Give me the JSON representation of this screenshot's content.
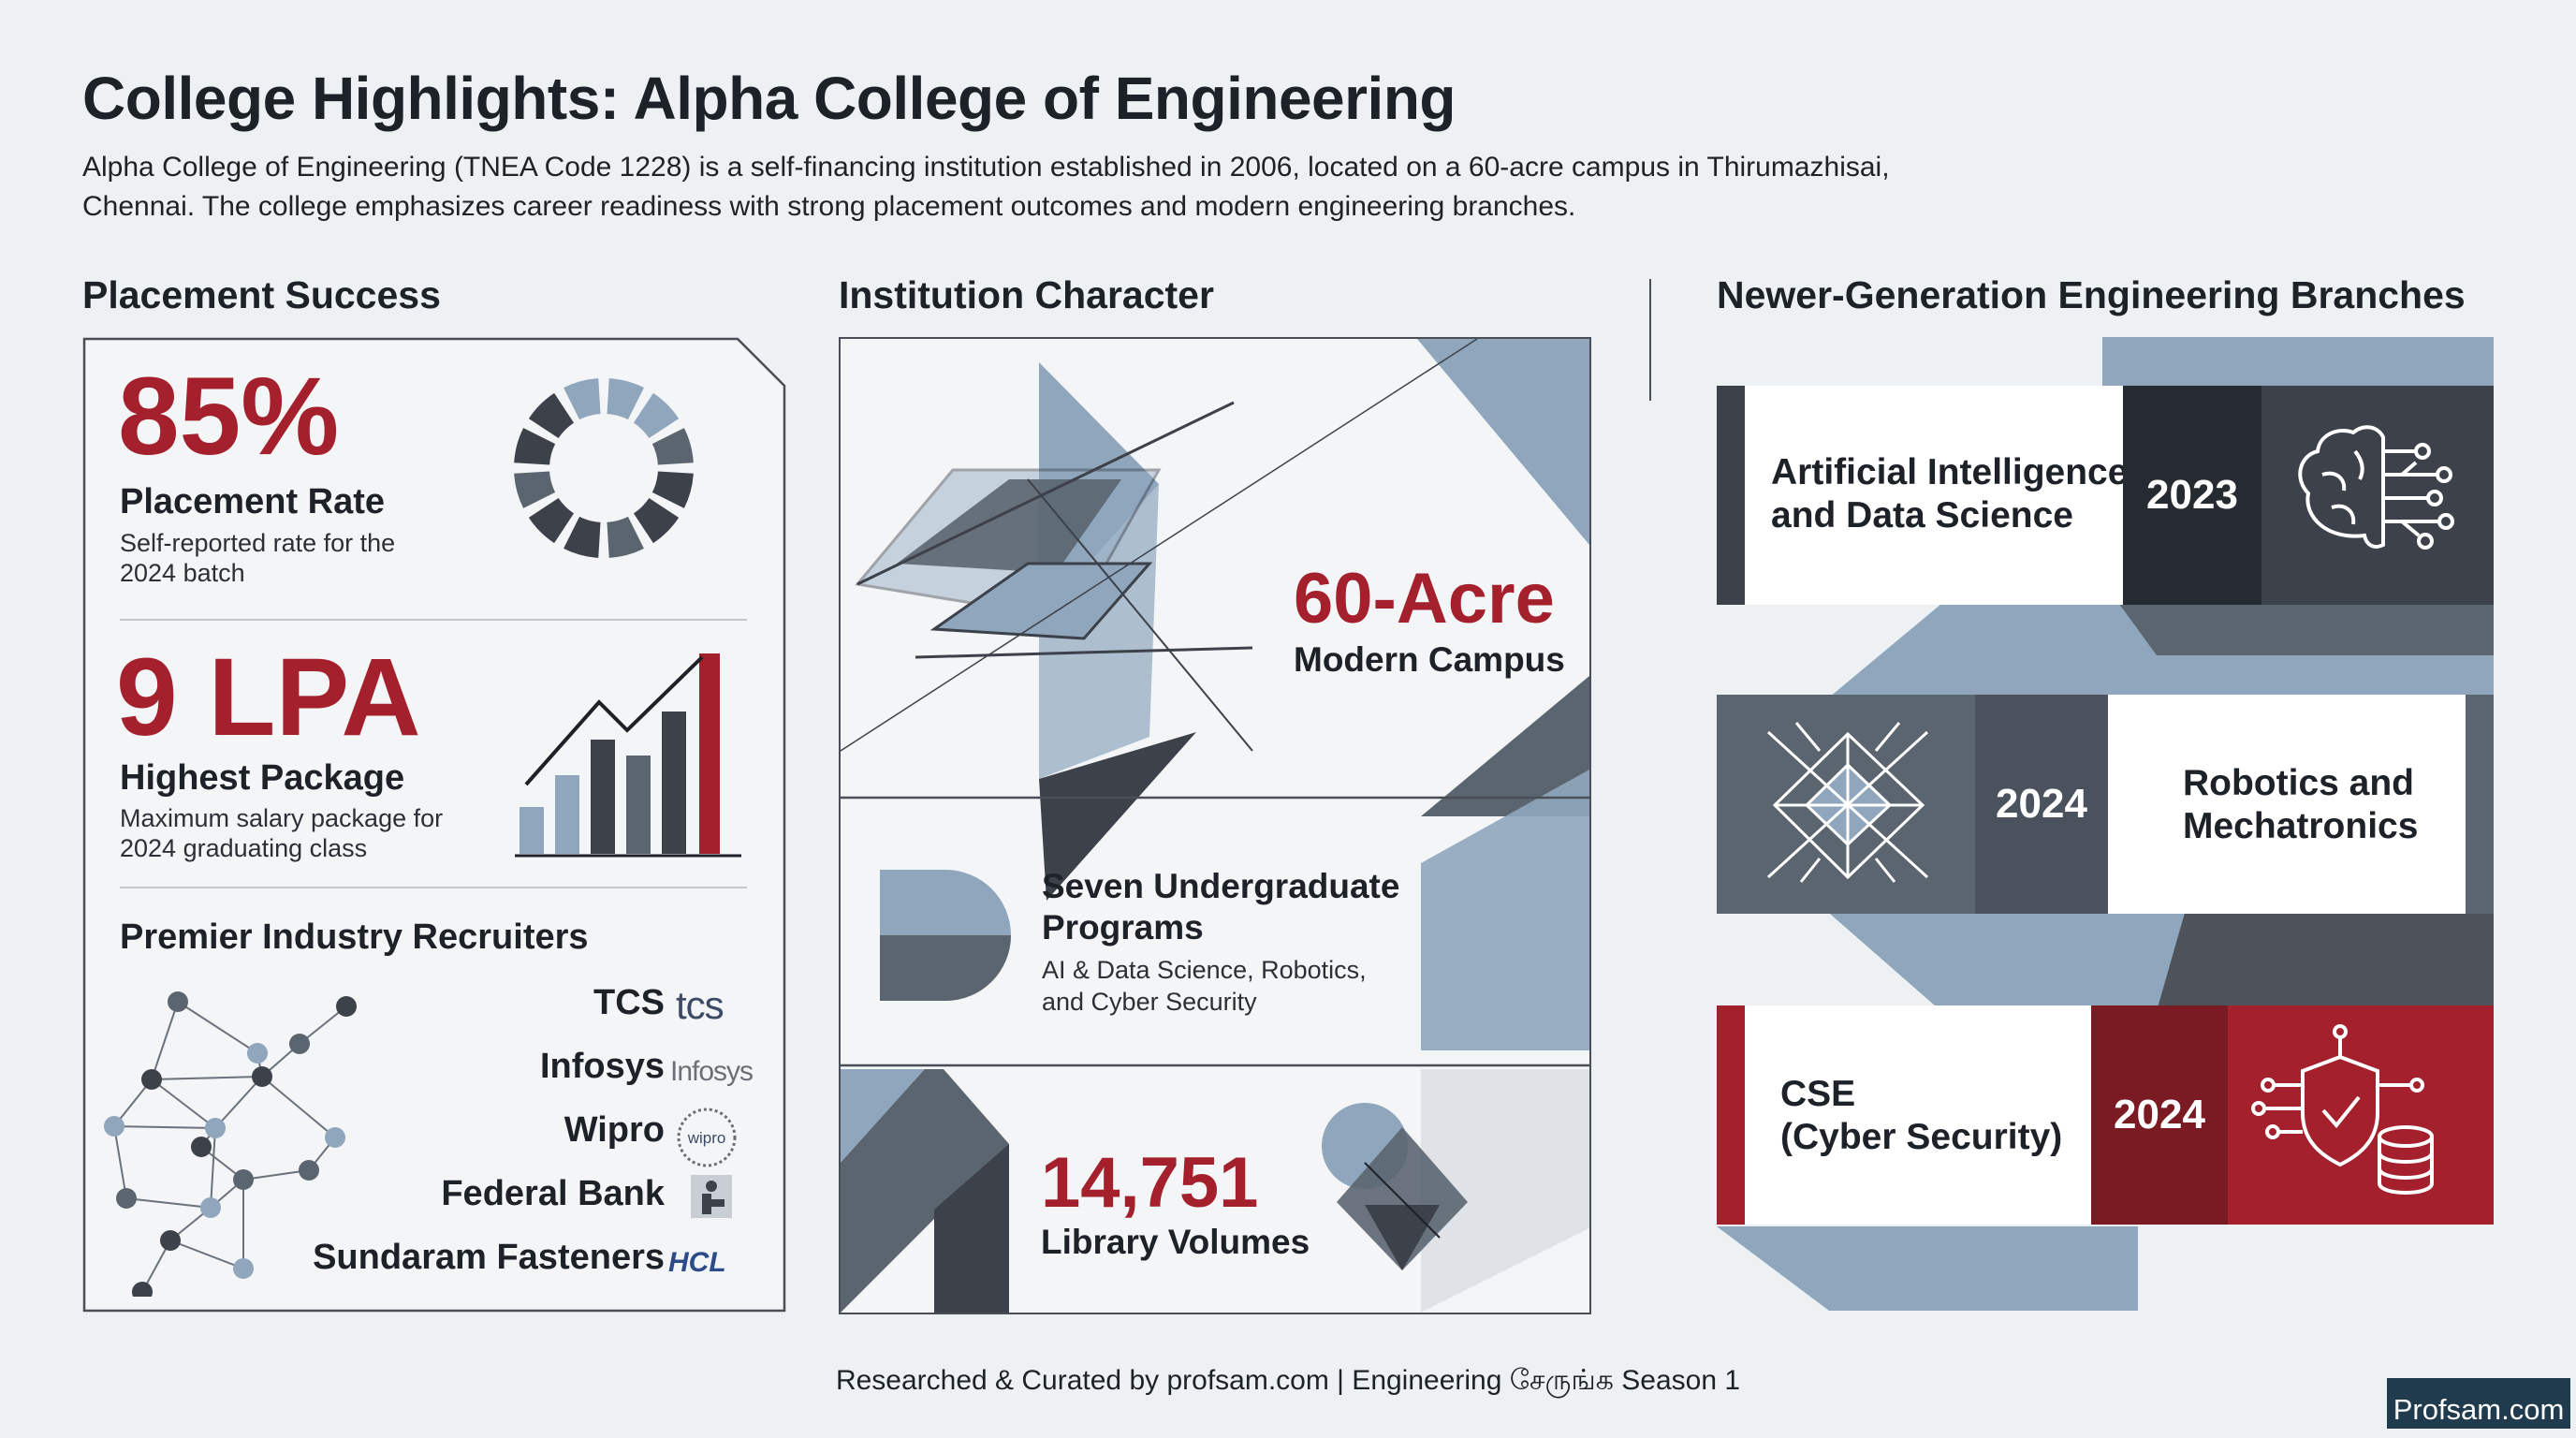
{
  "header": {
    "title": "College Highlights: Alpha College of Engineering",
    "intro_line1": "Alpha College of Engineering (TNEA Code 1228) is a self-financing institution established in 2006, located on a 60-acre campus in Thirumazhisai,",
    "intro_line2": "Chennai. The college emphasizes career readiness with strong placement outcomes and modern engineering branches."
  },
  "placement": {
    "heading": "Placement Success",
    "rate_value": "85%",
    "rate_label": "Placement Rate",
    "rate_desc_1": "Self-reported rate for the",
    "rate_desc_2": "2024 batch",
    "package_value": "9 LPA",
    "package_label": "Highest Package",
    "package_desc_1": "Maximum salary package for",
    "package_desc_2": "2024 graduating class",
    "recruiters_heading": "Premier Industry Recruiters",
    "recruiters": [
      "TCS",
      "Infosys",
      "Wipro",
      "Federal Bank",
      "Sundaram Fasteners"
    ],
    "logos": [
      "tcs",
      "Infosys",
      "wipro",
      "",
      "HCL"
    ]
  },
  "institution": {
    "heading": "Institution Character",
    "campus_value": "60-Acre",
    "campus_label": "Modern Campus",
    "programs_title_1": "Seven Undergraduate",
    "programs_title_2": "Programs",
    "programs_desc_1": "AI & Data Science, Robotics,",
    "programs_desc_2": "and Cyber Security",
    "library_value": "14,751",
    "library_label": "Library Volumes"
  },
  "branches": {
    "heading": "Newer-Generation Engineering Branches",
    "items": [
      {
        "title_1": "Artificial Intelligence",
        "title_2": "and Data Science",
        "year": "2023",
        "icon": "brain-circuit-icon"
      },
      {
        "title_1": "Robotics and",
        "title_2": "Mechatronics",
        "year": "2024",
        "icon": "geometric-robot-icon"
      },
      {
        "title_1": "CSE",
        "title_2": "(Cyber Security)",
        "year": "2024",
        "icon": "shield-database-icon"
      }
    ]
  },
  "footer": {
    "credit": "Researched & Curated by profsam.com | Engineering சேருங்க Season 1",
    "badge": "Profsam.com"
  },
  "colors": {
    "accent_red": "#a3202c",
    "dark_slate": "#3c414a",
    "mid_slate": "#5b6570",
    "light_blue": "#8fa6bd"
  }
}
